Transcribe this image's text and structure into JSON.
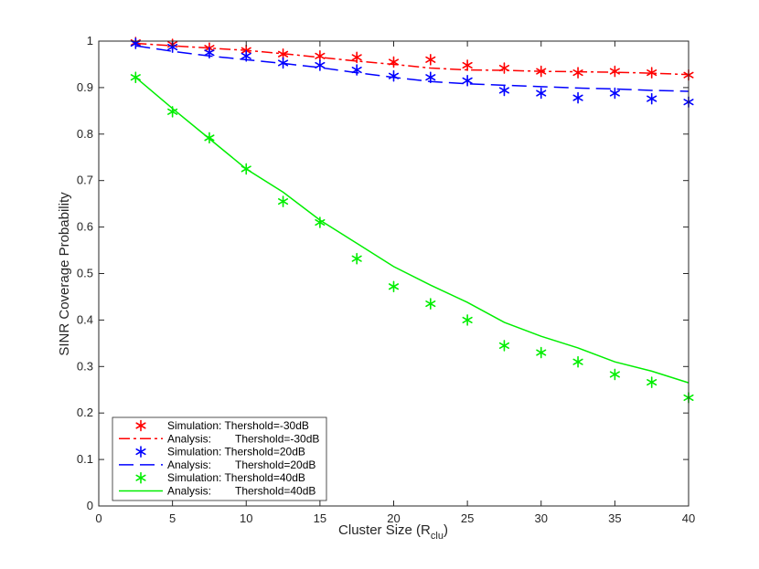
{
  "chart_data": {
    "type": "line",
    "xlabel_main": "Cluster Size (R",
    "xlabel_sub": "clu",
    "xlabel_end": ")",
    "ylabel": "SINR Coverage Probability",
    "xlim": [
      0,
      40
    ],
    "ylim": [
      0,
      1
    ],
    "xticks": [
      "0",
      "5",
      "10",
      "15",
      "20",
      "25",
      "30",
      "35",
      "40"
    ],
    "yticks": [
      "0",
      "0.1",
      "0.2",
      "0.3",
      "0.4",
      "0.5",
      "0.6",
      "0.7",
      "0.8",
      "0.9",
      "1"
    ],
    "grid": false,
    "legend_position": "bottom-left",
    "series": [
      {
        "name": "Simulation: Thershold=-30dB",
        "label_left": "Simulation: Thershold=-30dB",
        "label_right": "",
        "kind": "marker",
        "marker": "asterisk",
        "color": "#ff0000",
        "x": [
          2.5,
          5,
          7.5,
          10,
          12.5,
          15,
          17.5,
          20,
          22.5,
          25,
          27.5,
          30,
          32.5,
          35,
          37.5,
          40
        ],
        "y": [
          0.997,
          0.993,
          0.985,
          0.98,
          0.972,
          0.968,
          0.965,
          0.955,
          0.96,
          0.948,
          0.942,
          0.935,
          0.932,
          0.935,
          0.932,
          0.927
        ]
      },
      {
        "name": "Analysis:    Thershold=-30dB",
        "label_left": "Analysis:",
        "label_right": "Thershold=-30dB",
        "kind": "line",
        "dash": "12,4,3,4",
        "color": "#ff0000",
        "x": [
          2.5,
          5,
          7.5,
          10,
          12.5,
          15,
          17.5,
          20,
          22.5,
          25,
          27.5,
          30,
          32.5,
          35,
          37.5,
          40
        ],
        "y": [
          0.995,
          0.99,
          0.985,
          0.98,
          0.973,
          0.965,
          0.957,
          0.95,
          0.942,
          0.938,
          0.937,
          0.935,
          0.934,
          0.933,
          0.931,
          0.928
        ]
      },
      {
        "name": "Simulation: Thershold=20dB",
        "label_left": "Simulation: Thershold=20dB",
        "label_right": "",
        "kind": "marker",
        "marker": "asterisk",
        "color": "#0000ff",
        "x": [
          2.5,
          5,
          7.5,
          10,
          12.5,
          15,
          17.5,
          20,
          22.5,
          25,
          27.5,
          30,
          32.5,
          35,
          37.5,
          40
        ],
        "y": [
          0.995,
          0.987,
          0.975,
          0.968,
          0.953,
          0.948,
          0.938,
          0.925,
          0.922,
          0.915,
          0.894,
          0.888,
          0.878,
          0.888,
          0.876,
          0.869
        ]
      },
      {
        "name": "Analysis:    Thershold=20dB",
        "label_left": "Analysis:",
        "label_right": "Thershold=20dB",
        "kind": "line",
        "dash": "16,7",
        "color": "#0000ff",
        "x": [
          2.5,
          5,
          7.5,
          10,
          12.5,
          15,
          17.5,
          20,
          22.5,
          25,
          27.5,
          30,
          32.5,
          35,
          37.5,
          40
        ],
        "y": [
          0.99,
          0.978,
          0.968,
          0.96,
          0.952,
          0.943,
          0.932,
          0.922,
          0.913,
          0.908,
          0.905,
          0.902,
          0.899,
          0.897,
          0.894,
          0.892
        ]
      },
      {
        "name": "Simulation: Thershold=40dB",
        "label_left": "Simulation: Thershold=40dB",
        "label_right": "",
        "kind": "marker",
        "marker": "asterisk",
        "color": "#00ee00",
        "x": [
          2.5,
          5,
          7.5,
          10,
          12.5,
          15,
          17.5,
          20,
          22.5,
          25,
          27.5,
          30,
          32.5,
          35,
          37.5,
          40
        ],
        "y": [
          0.922,
          0.848,
          0.792,
          0.725,
          0.655,
          0.61,
          0.532,
          0.472,
          0.435,
          0.4,
          0.345,
          0.33,
          0.31,
          0.283,
          0.266,
          0.233
        ]
      },
      {
        "name": "Analysis:    Thershold=40dB",
        "label_left": "Analysis:",
        "label_right": "Thershold=40dB",
        "kind": "line",
        "dash": "",
        "color": "#00ee00",
        "x": [
          2.5,
          5,
          7.5,
          10,
          12.5,
          15,
          17.5,
          20,
          22.5,
          25,
          27.5,
          30,
          32.5,
          35,
          37.5,
          40
        ],
        "y": [
          0.922,
          0.855,
          0.79,
          0.725,
          0.675,
          0.615,
          0.565,
          0.515,
          0.475,
          0.438,
          0.395,
          0.365,
          0.34,
          0.31,
          0.29,
          0.265
        ]
      }
    ]
  }
}
